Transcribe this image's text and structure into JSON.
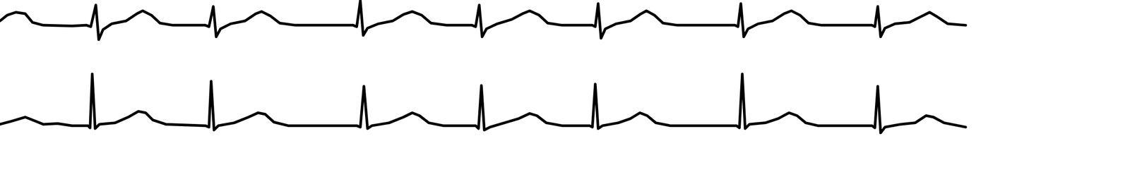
{
  "chart_data": [
    {
      "type": "line",
      "tick_labels": false,
      "xlim": [
        0,
        1568
      ],
      "ylim": [
        -30,
        35
      ],
      "x": [
        0,
        10,
        22,
        35,
        45,
        60,
        100,
        120,
        126,
        133,
        137,
        143,
        155,
        175,
        190,
        198,
        210,
        222,
        240,
        285,
        290,
        296,
        300,
        306,
        320,
        340,
        355,
        363,
        375,
        388,
        410,
        490,
        495,
        500,
        504,
        510,
        525,
        545,
        560,
        572,
        585,
        598,
        620,
        655,
        660,
        665,
        669,
        675,
        690,
        710,
        725,
        735,
        748,
        760,
        780,
        822,
        826,
        830,
        834,
        840,
        855,
        875,
        888,
        897,
        908,
        920,
        940,
        1020,
        1024,
        1028,
        1032,
        1038,
        1052,
        1072,
        1088,
        1098,
        1110,
        1122,
        1140,
        1210,
        1214,
        1218,
        1222,
        1228,
        1242,
        1262,
        1278,
        1290,
        1300,
        1315,
        1340
      ],
      "series": [
        {
          "color": "#000000",
          "values": [
            6,
            14,
            18,
            16,
            4,
            0,
            -1,
            0,
            -2,
            28,
            -20,
            -6,
            2,
            6,
            16,
            20,
            14,
            3,
            0,
            0,
            -2,
            26,
            -16,
            -5,
            2,
            6,
            16,
            19,
            13,
            3,
            0,
            0,
            -2,
            34,
            -14,
            -4,
            2,
            6,
            15,
            19,
            14,
            3,
            0,
            0,
            -2,
            28,
            -16,
            -5,
            2,
            8,
            16,
            20,
            14,
            3,
            0,
            0,
            -2,
            30,
            -18,
            -5,
            2,
            6,
            15,
            20,
            14,
            3,
            0,
            0,
            -2,
            30,
            -16,
            -5,
            2,
            6,
            16,
            20,
            14,
            3,
            0,
            0,
            -2,
            26,
            -16,
            -4,
            2,
            4,
            12,
            18,
            12,
            2,
            0
          ]
        }
      ]
    },
    {
      "type": "line",
      "tick_labels": false,
      "xlim": [
        0,
        1568
      ],
      "ylim": [
        -30,
        80
      ],
      "x": [
        0,
        15,
        35,
        45,
        60,
        80,
        100,
        122,
        125,
        128,
        132,
        138,
        160,
        178,
        192,
        202,
        212,
        230,
        285,
        290,
        293,
        297,
        303,
        325,
        345,
        358,
        368,
        380,
        400,
        495,
        500,
        505,
        510,
        516,
        540,
        560,
        572,
        582,
        595,
        615,
        660,
        664,
        668,
        672,
        680,
        700,
        720,
        735,
        745,
        758,
        780,
        818,
        822,
        826,
        830,
        836,
        858,
        875,
        888,
        898,
        910,
        930,
        1022,
        1026,
        1030,
        1034,
        1040,
        1062,
        1080,
        1095,
        1106,
        1118,
        1135,
        1210,
        1214,
        1218,
        1222,
        1228,
        1250,
        1270,
        1285,
        1295,
        1310,
        1340
      ],
      "series": [
        {
          "color": "#000000",
          "values": [
            2,
            6,
            12,
            8,
            2,
            3,
            0,
            0,
            -3,
            72,
            -4,
            2,
            4,
            12,
            20,
            18,
            8,
            2,
            0,
            -2,
            62,
            -6,
            0,
            4,
            12,
            18,
            16,
            5,
            0,
            0,
            -2,
            55,
            -4,
            0,
            4,
            12,
            18,
            14,
            4,
            0,
            0,
            -4,
            56,
            -6,
            -2,
            4,
            10,
            17,
            14,
            4,
            0,
            0,
            -2,
            58,
            -4,
            0,
            4,
            10,
            18,
            14,
            4,
            0,
            0,
            -3,
            72,
            -4,
            2,
            4,
            10,
            18,
            14,
            4,
            0,
            0,
            -3,
            55,
            -10,
            -2,
            2,
            4,
            14,
            12,
            4,
            -2
          ]
        }
      ]
    }
  ]
}
